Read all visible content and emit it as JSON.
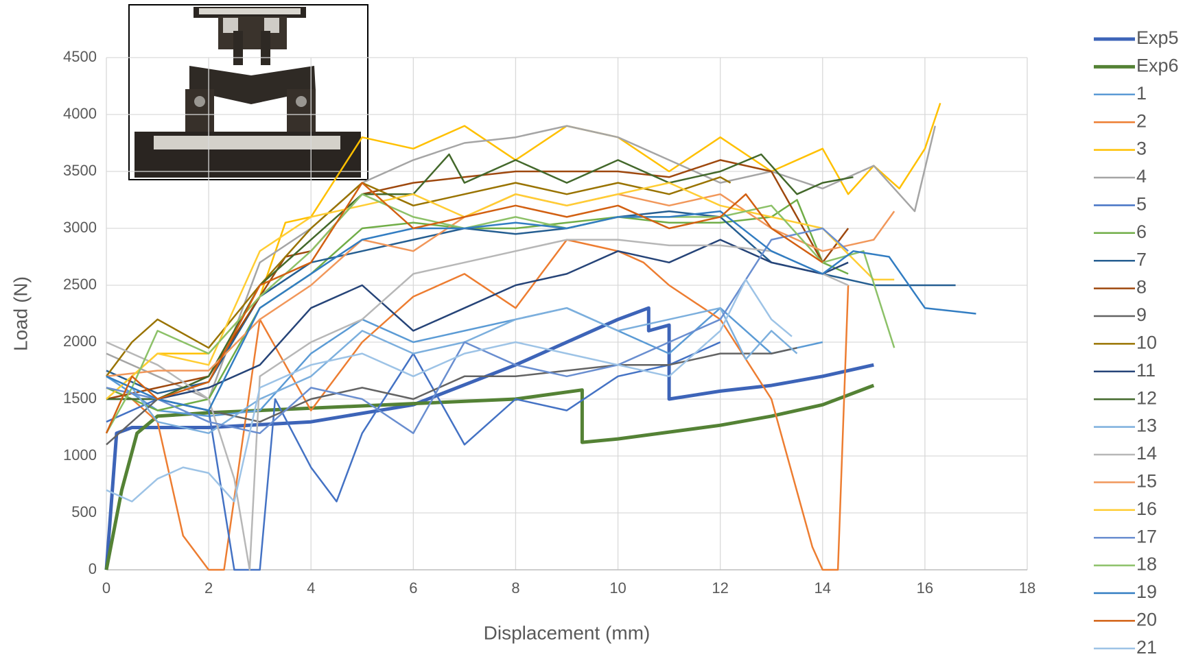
{
  "chart_data": {
    "type": "line",
    "x_label": "Displacement (mm)",
    "y_label": "Load (N)",
    "xlim": [
      0,
      18
    ],
    "xticks": [
      0,
      2,
      4,
      6,
      8,
      10,
      12,
      14,
      16,
      18
    ],
    "ylim": [
      0,
      4500
    ],
    "yticks": [
      0,
      500,
      1000,
      1500,
      2000,
      2500,
      3000,
      3500,
      4000,
      4500
    ],
    "grid": true,
    "legend": "right",
    "series": [
      {
        "name": "Exp5",
        "color": "#3d64b8",
        "line_width": 5,
        "x": [
          0,
          0.2,
          0.5,
          2,
          4,
          6,
          8,
          10,
          10.6,
          10.6,
          11,
          11,
          12,
          13,
          14,
          15
        ],
        "values": [
          0,
          1200,
          1250,
          1250,
          1300,
          1450,
          1800,
          2200,
          2300,
          2100,
          2150,
          1500,
          1570,
          1620,
          1700,
          1800
        ]
      },
      {
        "name": "Exp6",
        "color": "#548235",
        "line_width": 5,
        "x": [
          0,
          0.3,
          0.6,
          1,
          2,
          4,
          6,
          8,
          9.3,
          9.3,
          10,
          12,
          13,
          14,
          15
        ],
        "values": [
          0,
          700,
          1200,
          1350,
          1380,
          1420,
          1460,
          1500,
          1580,
          1120,
          1150,
          1270,
          1350,
          1450,
          1620
        ]
      },
      {
        "name": "1",
        "color": "#5b9bd5",
        "line_width": 2.5,
        "x": [
          0,
          0.5,
          1,
          2,
          3,
          4,
          5,
          6,
          7,
          8,
          9,
          10,
          11,
          12,
          13,
          14
        ],
        "values": [
          1700,
          1550,
          1400,
          1350,
          1400,
          1900,
          2200,
          2000,
          2100,
          2200,
          2300,
          2100,
          1900,
          2300,
          1900,
          2000
        ]
      },
      {
        "name": "2",
        "color": "#ed7d31",
        "line_width": 2.5,
        "x": [
          0,
          0.5,
          1,
          1.5,
          2,
          2.3,
          3,
          4,
          5,
          6,
          7,
          8,
          9,
          10,
          10.5,
          11,
          12,
          13,
          13.8,
          14,
          14.3,
          14.5
        ],
        "values": [
          1600,
          1500,
          1300,
          300,
          0,
          0,
          2200,
          1400,
          2000,
          2400,
          2600,
          2300,
          2900,
          2800,
          2700,
          2500,
          2200,
          1500,
          200,
          0,
          0,
          2500
        ]
      },
      {
        "name": "3",
        "color": "#ffc000",
        "line_width": 2.5,
        "x": [
          0,
          1,
          2,
          3,
          3.5,
          4,
          5,
          6,
          7,
          8,
          9,
          10,
          11,
          12,
          13,
          14,
          14.5,
          15,
          15.5,
          16,
          16.3
        ],
        "values": [
          1500,
          1900,
          1900,
          2400,
          3050,
          3100,
          3800,
          3700,
          3900,
          3600,
          3900,
          3800,
          3500,
          3800,
          3500,
          3700,
          3300,
          3550,
          3350,
          3700,
          4100
        ]
      },
      {
        "name": "4",
        "color": "#a5a5a5",
        "line_width": 2.5,
        "x": [
          0,
          1,
          2,
          3,
          4,
          5,
          6,
          7,
          8,
          9,
          10,
          11,
          12,
          13,
          14,
          15,
          15.8,
          16.2
        ],
        "values": [
          1900,
          1700,
          1500,
          2700,
          3000,
          3400,
          3600,
          3750,
          3800,
          3900,
          3800,
          3600,
          3400,
          3500,
          3350,
          3550,
          3150,
          3900
        ]
      },
      {
        "name": "5",
        "color": "#4472c4",
        "line_width": 2.5,
        "x": [
          0,
          1,
          2,
          2.5,
          3,
          3.3,
          4,
          4.5,
          5,
          6,
          7,
          8,
          9,
          10,
          11,
          12
        ],
        "values": [
          1300,
          1500,
          1400,
          0,
          0,
          1500,
          900,
          600,
          1200,
          1900,
          1100,
          1500,
          1400,
          1700,
          1800,
          2000
        ]
      },
      {
        "name": "6",
        "color": "#70ad47",
        "line_width": 2.5,
        "x": [
          0,
          1,
          2,
          3,
          4,
          5,
          6,
          7,
          8,
          9,
          10,
          11,
          12,
          13,
          13.5,
          14,
          14.5
        ],
        "values": [
          1600,
          1400,
          1500,
          2300,
          2600,
          3000,
          3050,
          3000,
          3000,
          3050,
          3100,
          3050,
          3050,
          3100,
          3250,
          2700,
          2600
        ]
      },
      {
        "name": "7",
        "color": "#255e91",
        "line_width": 2.5,
        "x": [
          0,
          1,
          2,
          3,
          4,
          5,
          6,
          7,
          8,
          9,
          10,
          11,
          12,
          13,
          14,
          15,
          16,
          16.6
        ],
        "values": [
          1750,
          1550,
          1650,
          2400,
          2700,
          2800,
          2900,
          3000,
          2950,
          3000,
          3100,
          3150,
          3100,
          2700,
          2600,
          2500,
          2500,
          2500
        ]
      },
      {
        "name": "8",
        "color": "#9e480e",
        "line_width": 2.5,
        "x": [
          0,
          1,
          2,
          3,
          3.5,
          4,
          5,
          6,
          7,
          8,
          9,
          10,
          11,
          12,
          13,
          14,
          14.5
        ],
        "values": [
          1500,
          1600,
          1700,
          2400,
          2750,
          2800,
          3300,
          3400,
          3450,
          3500,
          3500,
          3500,
          3450,
          3600,
          3500,
          2700,
          3000
        ]
      },
      {
        "name": "9",
        "color": "#636363",
        "line_width": 2.5,
        "x": [
          0,
          1,
          2,
          3,
          4,
          5,
          6,
          7,
          8,
          9,
          10,
          11,
          12,
          13,
          13.5
        ],
        "values": [
          1100,
          1500,
          1400,
          1300,
          1500,
          1600,
          1500,
          1700,
          1700,
          1750,
          1800,
          1800,
          1900,
          1900,
          1950
        ]
      },
      {
        "name": "10",
        "color": "#997300",
        "line_width": 2.5,
        "x": [
          0,
          0.5,
          1,
          2,
          3,
          4,
          5,
          6,
          7,
          8,
          9,
          10,
          11,
          12,
          12.2
        ],
        "values": [
          1700,
          2000,
          2200,
          1950,
          2500,
          3000,
          3400,
          3200,
          3300,
          3400,
          3300,
          3400,
          3300,
          3450,
          3400
        ]
      },
      {
        "name": "11",
        "color": "#264478",
        "line_width": 2.5,
        "x": [
          0,
          1,
          2,
          3,
          4,
          5,
          6,
          7,
          8,
          9,
          10,
          11,
          12,
          13,
          14,
          14.5
        ],
        "values": [
          1500,
          1500,
          1600,
          1800,
          2300,
          2500,
          2100,
          2300,
          2500,
          2600,
          2800,
          2700,
          2900,
          2700,
          2600,
          2700
        ]
      },
      {
        "name": "12",
        "color": "#43682b",
        "line_width": 2.5,
        "x": [
          0,
          1,
          2,
          3,
          4,
          5,
          6,
          6.7,
          7,
          8,
          9,
          10,
          11,
          12,
          12.8,
          13.5,
          14,
          14.6
        ],
        "values": [
          1500,
          1500,
          1700,
          2500,
          2900,
          3300,
          3300,
          3650,
          3400,
          3600,
          3400,
          3600,
          3400,
          3500,
          3650,
          3300,
          3400,
          3450
        ]
      },
      {
        "name": "13",
        "color": "#7cafdd",
        "line_width": 2.5,
        "x": [
          0,
          0.5,
          1,
          2,
          3,
          4,
          5,
          6,
          7,
          8,
          9,
          10,
          11,
          12,
          12.5,
          13,
          13.5
        ],
        "values": [
          1700,
          1600,
          1300,
          1200,
          1500,
          1700,
          2100,
          1900,
          2000,
          2200,
          2300,
          2100,
          2200,
          2300,
          1850,
          2100,
          1900
        ]
      },
      {
        "name": "14",
        "color": "#b7b7b7",
        "line_width": 2.5,
        "x": [
          0,
          1,
          2,
          2.5,
          2.8,
          3,
          4,
          5,
          6,
          7,
          8,
          9,
          10,
          11,
          12,
          13,
          14,
          14.5
        ],
        "values": [
          2000,
          1800,
          1500,
          800,
          0,
          1700,
          2000,
          2200,
          2600,
          2700,
          2800,
          2900,
          2900,
          2850,
          2850,
          2800,
          2600,
          2500
        ]
      },
      {
        "name": "15",
        "color": "#f1975a",
        "line_width": 2.5,
        "x": [
          0,
          1,
          2,
          3,
          4,
          5,
          6,
          7,
          8,
          9,
          10,
          11,
          12,
          13,
          14,
          15,
          15.4
        ],
        "values": [
          1700,
          1750,
          1750,
          2200,
          2500,
          2900,
          2800,
          3100,
          3300,
          3200,
          3300,
          3200,
          3300,
          3000,
          2800,
          2900,
          3150
        ]
      },
      {
        "name": "16",
        "color": "#ffcd33",
        "line_width": 2.5,
        "x": [
          0,
          1,
          2,
          3,
          4,
          5,
          6,
          7,
          8,
          9,
          10,
          11,
          12,
          13,
          14,
          15,
          15.4
        ],
        "values": [
          1500,
          1900,
          1800,
          2800,
          3100,
          3200,
          3300,
          3100,
          3300,
          3200,
          3300,
          3400,
          3200,
          3100,
          3000,
          2550,
          2550
        ]
      },
      {
        "name": "17",
        "color": "#698ed0",
        "line_width": 2.5,
        "x": [
          0,
          1,
          2,
          3,
          4,
          5,
          6,
          7,
          8,
          9,
          10,
          11,
          12,
          13,
          14,
          14.5
        ],
        "values": [
          1600,
          1500,
          1300,
          1200,
          1600,
          1500,
          1200,
          2000,
          1800,
          1700,
          1800,
          2000,
          2200,
          2900,
          3000,
          2800
        ]
      },
      {
        "name": "18",
        "color": "#8cc168",
        "line_width": 2.5,
        "x": [
          0,
          0.5,
          1,
          2,
          3,
          4,
          5,
          6,
          7,
          8,
          9,
          10,
          11,
          12,
          13,
          14,
          14.8,
          15.4
        ],
        "values": [
          1200,
          1600,
          2100,
          1900,
          2400,
          2800,
          3300,
          3100,
          3000,
          3100,
          3000,
          3100,
          3100,
          3100,
          3200,
          2700,
          2800,
          1950
        ]
      },
      {
        "name": "19",
        "color": "#327dc2",
        "line_width": 2.5,
        "x": [
          0,
          1,
          2,
          3,
          4,
          5,
          6,
          7,
          8,
          9,
          10,
          11,
          12,
          13,
          14,
          14.6,
          15.3,
          16,
          17
        ],
        "values": [
          1700,
          1500,
          1400,
          2300,
          2600,
          2900,
          3000,
          3000,
          3050,
          3000,
          3100,
          3100,
          3150,
          2800,
          2600,
          2800,
          2750,
          2300,
          2250
        ]
      },
      {
        "name": "20",
        "color": "#d26012",
        "line_width": 2.5,
        "x": [
          0,
          0.5,
          1,
          2,
          3,
          4,
          5,
          6,
          7,
          8,
          9,
          10,
          11,
          12,
          12.5,
          13,
          14
        ],
        "values": [
          1200,
          1700,
          1500,
          1650,
          2500,
          2700,
          3400,
          3000,
          3100,
          3200,
          3100,
          3200,
          3000,
          3100,
          3300,
          3000,
          2700
        ]
      },
      {
        "name": "21",
        "color": "#9dc3e6",
        "line_width": 2.5,
        "x": [
          0,
          0.5,
          1,
          1.5,
          2,
          2.5,
          3,
          4,
          5,
          6,
          7,
          8,
          9,
          10,
          11,
          12,
          12.5,
          13,
          13.4
        ],
        "values": [
          700,
          600,
          800,
          900,
          850,
          600,
          1600,
          1800,
          1900,
          1700,
          1900,
          2000,
          1900,
          1800,
          1700,
          2100,
          2550,
          2200,
          2050
        ]
      }
    ]
  }
}
